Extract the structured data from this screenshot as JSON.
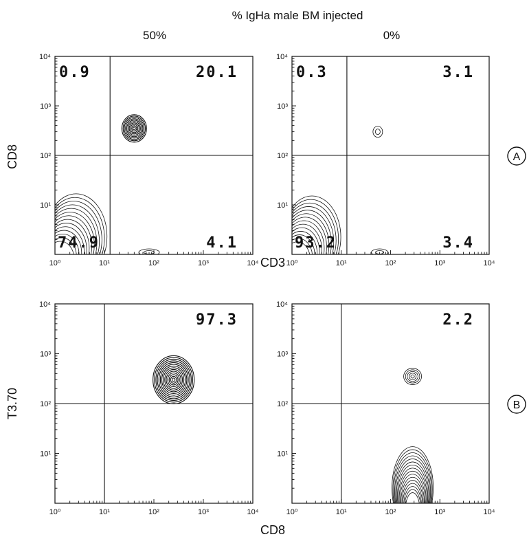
{
  "figure": {
    "header": "% IgHa male BM injected",
    "column_labels": [
      "50%",
      "0%"
    ],
    "row_markers": [
      "A",
      "B"
    ],
    "row_y_labels": [
      "CD8",
      "T3.70"
    ],
    "row_x_labels": [
      "CD3",
      "CD8"
    ]
  },
  "chart_data": [
    {
      "type": "contour",
      "panel": "A-50%",
      "xlabel": "CD3",
      "ylabel": "CD8",
      "xscale": "log",
      "yscale": "log",
      "xlim": [
        1,
        10000
      ],
      "ylim": [
        1,
        10000
      ],
      "x_ticks": [
        "10⁰",
        "10¹",
        "10²",
        "10³",
        "10⁴"
      ],
      "y_ticks": [
        "10¹",
        "10²",
        "10³",
        "10⁴"
      ],
      "gate": {
        "x": 13,
        "y": 100
      },
      "quadrant_values": {
        "upper_left": "0.9",
        "upper_right": "20.1",
        "lower_left": "74.9",
        "lower_right": "4.1"
      },
      "populations": [
        {
          "x": 40,
          "y": 350
        },
        {
          "x": 2.5,
          "y": 2
        },
        {
          "x": 80,
          "y": 1.1
        }
      ]
    },
    {
      "type": "contour",
      "panel": "A-0%",
      "xlabel": "CD3",
      "ylabel": "CD8",
      "xscale": "log",
      "yscale": "log",
      "xlim": [
        1,
        10000
      ],
      "ylim": [
        1,
        10000
      ],
      "x_ticks": [
        "10⁰",
        "10¹",
        "10²",
        "10³",
        "10⁴"
      ],
      "y_ticks": [
        "10¹",
        "10²",
        "10³",
        "10⁴"
      ],
      "gate": {
        "x": 13,
        "y": 100
      },
      "quadrant_values": {
        "upper_left": "0.3",
        "upper_right": "3.1",
        "lower_left": "93.2",
        "lower_right": "3.4"
      },
      "populations": [
        {
          "x": 55,
          "y": 300
        },
        {
          "x": 2.5,
          "y": 2
        },
        {
          "x": 60,
          "y": 1.1
        }
      ]
    },
    {
      "type": "contour",
      "panel": "B-50%",
      "xlabel": "CD8",
      "ylabel": "T3.70",
      "xscale": "log",
      "yscale": "log",
      "xlim": [
        1,
        10000
      ],
      "ylim": [
        1,
        10000
      ],
      "x_ticks": [
        "10⁰",
        "10¹",
        "10²",
        "10³",
        "10⁴"
      ],
      "y_ticks": [
        "10¹",
        "10²",
        "10³",
        "10⁴"
      ],
      "gate": {
        "x": 10,
        "y": 100
      },
      "quadrant_values": {
        "upper_left": "",
        "upper_right": "97.3",
        "lower_left": "",
        "lower_right": ""
      },
      "populations": [
        {
          "x": 250,
          "y": 300
        }
      ]
    },
    {
      "type": "contour",
      "panel": "B-0%",
      "xlabel": "CD8",
      "ylabel": "T3.70",
      "xscale": "log",
      "yscale": "log",
      "xlim": [
        1,
        10000
      ],
      "ylim": [
        1,
        10000
      ],
      "x_ticks": [
        "10⁰",
        "10¹",
        "10²",
        "10³",
        "10⁴"
      ],
      "y_ticks": [
        "10¹",
        "10²",
        "10³",
        "10⁴"
      ],
      "gate": {
        "x": 10,
        "y": 100
      },
      "quadrant_values": {
        "upper_left": "",
        "upper_right": "2.2",
        "lower_left": "",
        "lower_right": ""
      },
      "populations": [
        {
          "x": 280,
          "y": 350
        },
        {
          "x": 280,
          "y": 3
        }
      ]
    }
  ]
}
